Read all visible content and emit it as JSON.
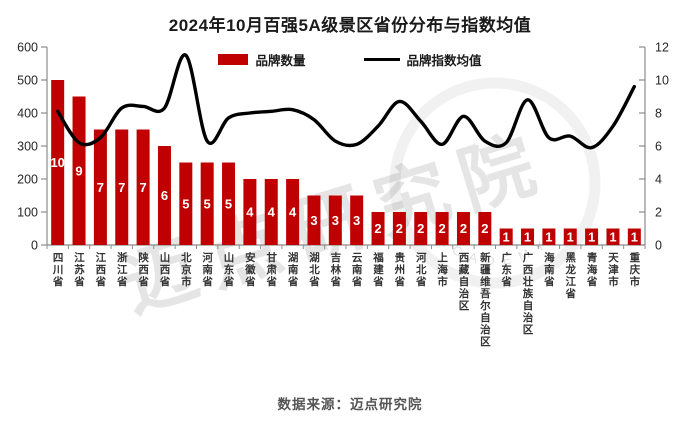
{
  "title": "2024年10月百强5A级景区省份分布与指数均值",
  "legend": {
    "bar_label": "品牌数量",
    "line_label": "品牌指数均值"
  },
  "source_note": "数据来源：迈点研究院",
  "watermark": {
    "text": "迈点研究院",
    "ring_text": "ACADEMY"
  },
  "colors": {
    "bar": "#c00000",
    "line": "#000000",
    "axis": "#8c8c8c",
    "bar_value_label": "#ffffff",
    "tick_text": "#262626",
    "x_text": "#333333",
    "source": "#555555"
  },
  "chart_data": {
    "type": "bar",
    "subtype": "combo bar+line, dual y-axis",
    "title": "2024年10月百强5A级景区省份分布与指数均值",
    "categories": [
      "四川省",
      "江苏省",
      "江西省",
      "浙江省",
      "陕西省",
      "山西省",
      "北京市",
      "河南省",
      "山东省",
      "安徽省",
      "甘肃省",
      "湖南省",
      "湖北省",
      "吉林省",
      "云南省",
      "福建省",
      "贵州省",
      "河北省",
      "上海市",
      "西藏自治区",
      "新疆维吾尔自治区",
      "广东省",
      "广西壮族自治区",
      "海南省",
      "黑龙江省",
      "青海省",
      "天津市",
      "重庆市"
    ],
    "series": [
      {
        "name": "品牌数量",
        "type": "bar",
        "axis": "left",
        "values": [
          10,
          9,
          7,
          7,
          7,
          6,
          5,
          5,
          5,
          4,
          4,
          4,
          3,
          3,
          3,
          2,
          2,
          2,
          2,
          2,
          2,
          1,
          1,
          1,
          1,
          1,
          1,
          1
        ]
      },
      {
        "name": "品牌指数均值",
        "type": "line",
        "axis": "right",
        "values": [
          8.1,
          6.2,
          6.5,
          8.3,
          8.4,
          8.3,
          11.5,
          6.3,
          7.7,
          8.0,
          8.1,
          8.2,
          7.6,
          6.3,
          6.1,
          7.2,
          8.7,
          7.5,
          6.1,
          7.8,
          6.3,
          6.2,
          8.8,
          6.5,
          6.6,
          5.9,
          7.2,
          9.6
        ]
      }
    ],
    "axes": {
      "y_left": {
        "min": 0,
        "max": 600,
        "step": 100,
        "ticks": [
          0,
          100,
          200,
          300,
          400,
          500,
          600
        ]
      },
      "y_right": {
        "min": 0,
        "max": 12,
        "step": 2,
        "ticks": [
          0,
          2,
          4,
          6,
          8,
          10,
          12
        ]
      }
    },
    "bar_axis_units_per_count": 50,
    "grid": false,
    "legend_position": "top-center",
    "bar_labels_inside": true
  }
}
